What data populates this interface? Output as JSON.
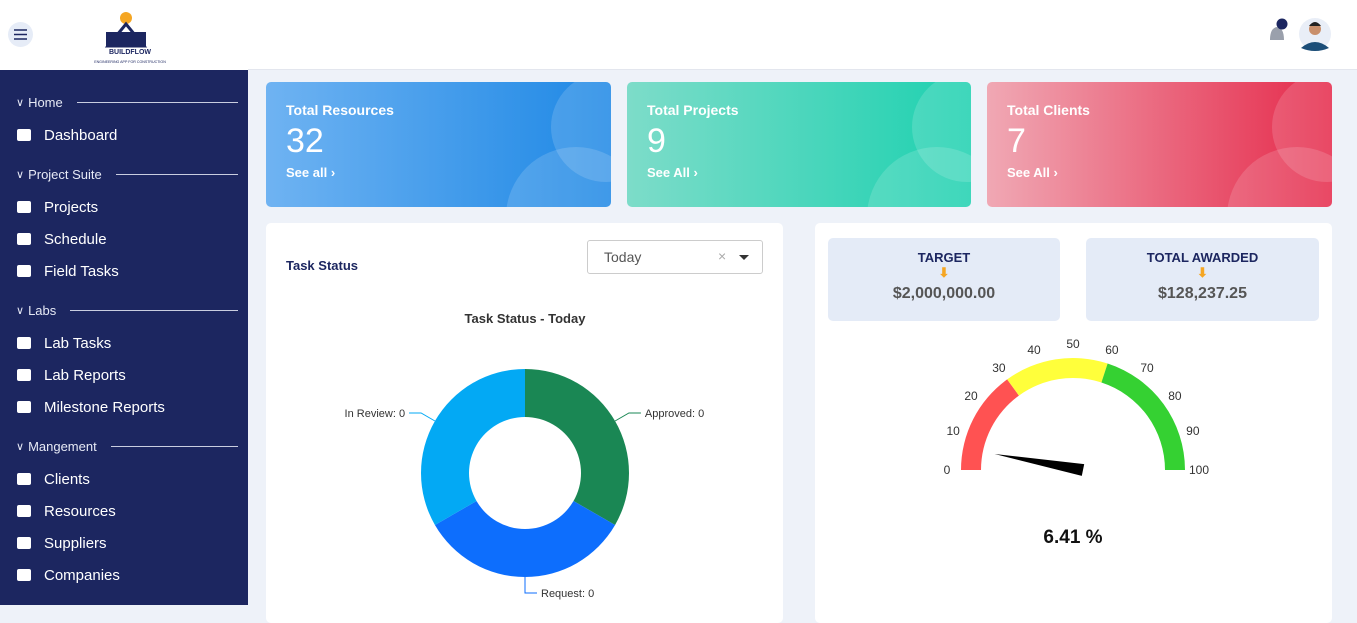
{
  "header": {
    "logo_title": "BUILDFLOW",
    "logo_subtitle": "ENGINEERING APP FOR CONSTRUCTION"
  },
  "sidebar": {
    "sections": [
      {
        "title": "Home",
        "items": [
          "Dashboard"
        ]
      },
      {
        "title": "Project Suite",
        "items": [
          "Projects",
          "Schedule",
          "Field Tasks"
        ]
      },
      {
        "title": "Labs",
        "items": [
          "Lab Tasks",
          "Lab Reports",
          "Milestone Reports"
        ]
      },
      {
        "title": "Mangement",
        "items": [
          "Clients",
          "Resources",
          "Suppliers",
          "Companies"
        ]
      }
    ]
  },
  "cards": [
    {
      "title": "Total Resources",
      "value": 32,
      "link": "See all"
    },
    {
      "title": "Total Projects",
      "value": 9,
      "link": "See All"
    },
    {
      "title": "Total Clients",
      "value": 7,
      "link": "See All"
    }
  ],
  "task_status": {
    "title": "Task Status",
    "filter": "Today"
  },
  "awards": {
    "target_label": "TARGET",
    "target": "$2,000,000.00",
    "awarded_label": "TOTAL AWARDED",
    "awarded": "$128,237.25"
  },
  "chart_data": [
    {
      "type": "donut",
      "title": "Task Status - Today",
      "categories": [
        "Approved",
        "Request",
        "In Review"
      ],
      "values": [
        0,
        0,
        0
      ],
      "value_labels": [
        "Approved: 0",
        "Request: 0",
        "In Review: 0"
      ],
      "colors": [
        "#1a8754",
        "#0d6efd",
        "#03a9f4"
      ]
    },
    {
      "type": "gauge",
      "value": 6.41,
      "value_label": "6.41 %",
      "ylim": [
        0,
        100
      ],
      "yticks": [
        0,
        10,
        20,
        30,
        40,
        50,
        60,
        70,
        80,
        90,
        100
      ],
      "bands": [
        {
          "from": 0,
          "to": 30,
          "color": "#ff5252"
        },
        {
          "from": 30,
          "to": 60,
          "color": "#ffff3b"
        },
        {
          "from": 60,
          "to": 100,
          "color": "#35d132"
        }
      ]
    }
  ]
}
